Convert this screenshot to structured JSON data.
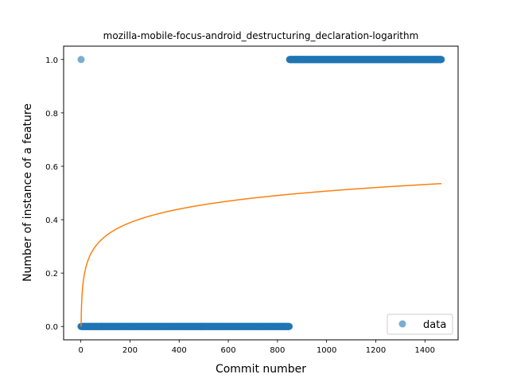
{
  "chart_data": {
    "type": "scatter",
    "title": "mozilla-mobile-focus-android_destructuring_declaration-logarithm",
    "xlabel": "Commit number",
    "ylabel": "Number of instance of a feature",
    "xlim": [
      -70,
      1535
    ],
    "ylim": [
      -0.05,
      1.05
    ],
    "xticks": [
      0,
      200,
      400,
      600,
      800,
      1000,
      1200,
      1400
    ],
    "yticks": [
      0.0,
      0.2,
      0.4,
      0.6,
      0.8,
      1.0
    ],
    "xtick_labels": [
      "0",
      "200",
      "400",
      "600",
      "800",
      "1000",
      "1200",
      "1400"
    ],
    "ytick_labels": [
      "0.0",
      "0.2",
      "0.4",
      "0.6",
      "0.8",
      "1.0"
    ],
    "grid": false,
    "legend": {
      "position": "lower right",
      "entries": [
        "data"
      ]
    },
    "series": [
      {
        "name": "data",
        "kind": "scatter",
        "color": "#1f77b4",
        "segments": [
          {
            "x_start": 0,
            "x_end": 0,
            "y": 0
          },
          {
            "x_start": 1,
            "x_end": 1,
            "y": 1
          },
          {
            "x_start": 2,
            "x_end": 848,
            "y": 0
          },
          {
            "x_start": 849,
            "x_end": 1467,
            "y": 1
          }
        ]
      },
      {
        "kind": "line",
        "color": "#ff7f0e",
        "model": "logarithmic",
        "a": 0.0,
        "b": 0.0734,
        "x_range": [
          1,
          1467
        ]
      }
    ]
  }
}
